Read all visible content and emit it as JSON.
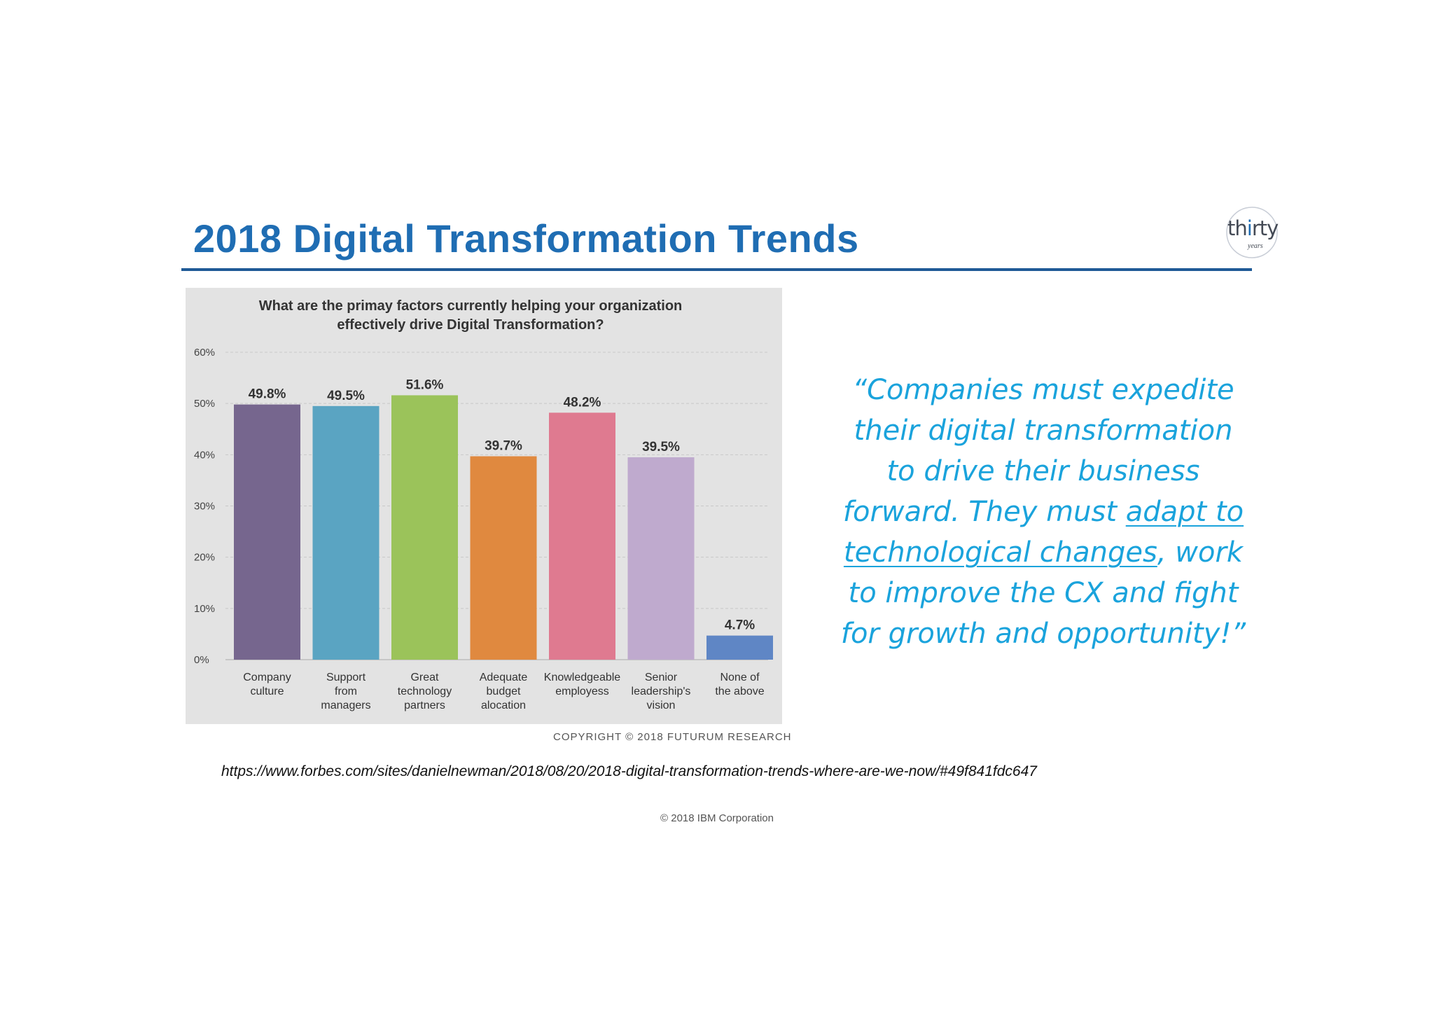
{
  "slide": {
    "title": "2018 Digital Transformation Trends",
    "logo": {
      "word_pre": "th",
      "word_accent": "i",
      "word_post": "rty",
      "sub": "years"
    },
    "source_url": "https://www.forbes.com/sites/danielnewman/2018/08/20/2018-digital-transformation-trends-where-are-we-now/#49f841fdc647",
    "footer": "© 2018 IBM Corporation",
    "quote": {
      "lines": [
        "“Companies must expedite",
        "their digital transformation",
        "to drive their business"
      ],
      "line4_pre": "forward. They must ",
      "line4_link": "adapt to",
      "line5_link": "technological changes",
      "line5_post": ", work",
      "line6": "to improve the CX and fight",
      "line7": "for growth and opportunity!”"
    }
  },
  "chart_data": {
    "type": "bar",
    "title": "What are the primay factors currently helping your organization effectively drive Digital Transformation?",
    "title_lines": [
      "What are the primay factors currently helping your organization",
      "effectively drive Digital Transformation?"
    ],
    "categories": [
      [
        "Company",
        "culture"
      ],
      [
        "Support",
        "from",
        "managers"
      ],
      [
        "Great",
        "technology",
        "partners"
      ],
      [
        "Adequate",
        "budget",
        "alocation"
      ],
      [
        "Knowledgeable",
        "employess"
      ],
      [
        "Senior",
        "leadership's",
        "vision"
      ],
      [
        "None of",
        "the above"
      ]
    ],
    "values": [
      49.8,
      49.5,
      51.6,
      39.7,
      48.2,
      39.5,
      4.7
    ],
    "value_labels": [
      "49.8%",
      "49.5%",
      "51.6%",
      "39.7%",
      "48.2%",
      "39.5%",
      "4.7%"
    ],
    "colors": [
      "#76668e",
      "#5aa4c2",
      "#9bc35a",
      "#e0893f",
      "#df7a90",
      "#bfaace",
      "#5f86c5"
    ],
    "ylim": [
      0,
      60
    ],
    "yticks": [
      0,
      10,
      20,
      30,
      40,
      50,
      60
    ],
    "ytick_labels": [
      "0%",
      "10%",
      "20%",
      "30%",
      "40%",
      "50%",
      "60%"
    ],
    "grid": true,
    "copyright": "COPYRIGHT © 2018 FUTURUM RESEARCH"
  }
}
